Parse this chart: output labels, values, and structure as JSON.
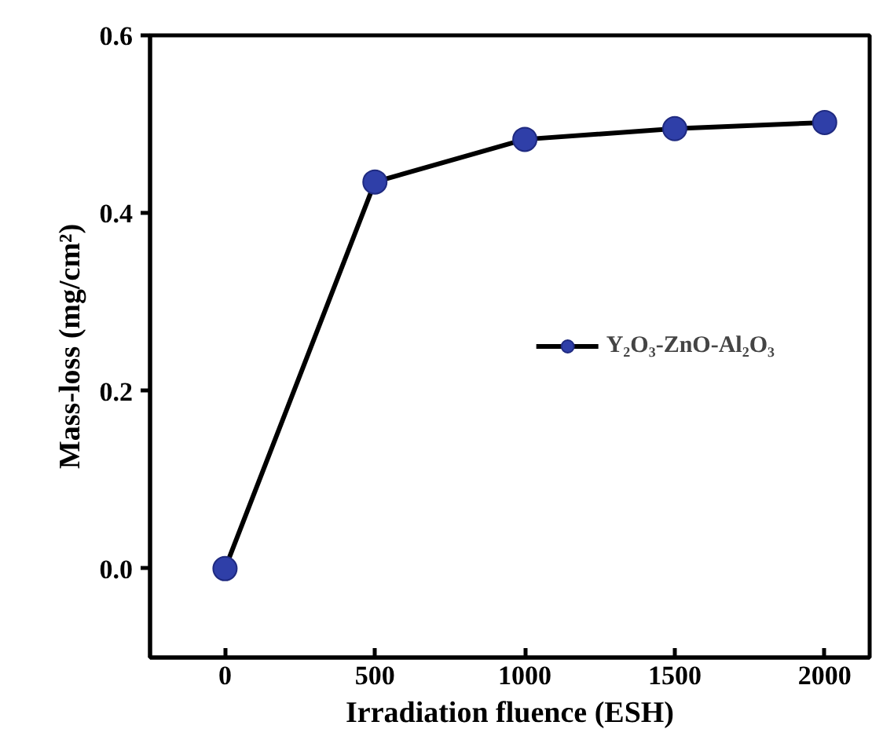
{
  "chart_data": {
    "type": "line",
    "xlabel": "Irradiation fluence (ESH)",
    "ylabel": "Mass-loss (mg/cm²)",
    "x": [
      0,
      500,
      1000,
      1500,
      2000
    ],
    "series": [
      {
        "name": "Y₂O₃-ZnO-Al₂O₃",
        "color": "#2f3fa8",
        "values": [
          0,
          0.435,
          0.483,
          0.495,
          0.502
        ]
      }
    ],
    "xlim": [
      -250,
      2150
    ],
    "ylim": [
      -0.1,
      0.6
    ],
    "xticks": [
      0,
      500,
      1000,
      1500,
      2000
    ],
    "yticks": [
      {
        "value": 0,
        "label": "0.0"
      },
      {
        "value": 0.2,
        "label": "0.2"
      },
      {
        "value": 0.4,
        "label": "0.4"
      },
      {
        "value": 0.6,
        "label": "0.6"
      }
    ],
    "legend": "right",
    "marker": "circle",
    "line_style": "solid",
    "grid": false
  }
}
